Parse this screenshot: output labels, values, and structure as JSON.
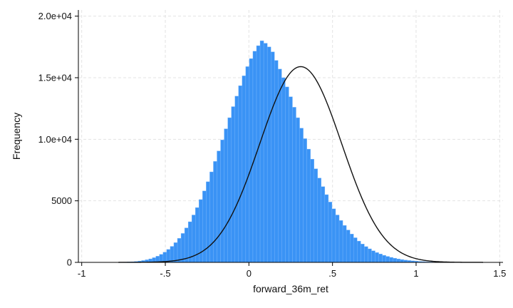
{
  "chart_data": {
    "type": "bar",
    "xlabel": "forward_36m_ret",
    "ylabel": "Frequency",
    "xlim": [
      -1.02,
      1.52
    ],
    "ylim": [
      0,
      20500
    ],
    "x_ticks": [
      -1,
      -0.5,
      0,
      0.5,
      1,
      1.5
    ],
    "x_tick_labels": [
      "-1",
      "-.5",
      "0",
      ".5",
      "1",
      "1.5"
    ],
    "y_ticks": [
      0,
      5000,
      10000,
      15000,
      20000
    ],
    "y_tick_labels": [
      "0",
      "5000",
      "1.0e+04",
      "1.5e+04",
      "2.0e+04"
    ],
    "grid": true,
    "bar_color": "#3a93f5",
    "bin_width": 0.0215,
    "bins_start": -0.75,
    "values": [
      20,
      35,
      50,
      75,
      110,
      150,
      210,
      285,
      380,
      500,
      650,
      830,
      1050,
      1300,
      1600,
      1950,
      2350,
      2800,
      3300,
      3850,
      4450,
      5100,
      5800,
      6550,
      7350,
      8200,
      9050,
      9950,
      10850,
      11750,
      12650,
      13500,
      14350,
      15150,
      15900,
      16550,
      17150,
      17600,
      18000,
      17800,
      17500,
      17100,
      16400,
      15700,
      15000,
      14250,
      13450,
      12600,
      11750,
      10900,
      10050,
      9200,
      8380,
      7600,
      6850,
      6150,
      5500,
      4900,
      4350,
      3850,
      3400,
      3000,
      2630,
      2300,
      2000,
      1730,
      1490,
      1280,
      1100,
      940,
      800,
      680,
      575,
      485,
      405,
      340,
      280,
      230,
      188,
      152,
      122,
      98,
      78,
      61,
      47,
      36,
      27,
      20,
      14,
      9,
      6,
      3
    ],
    "normal_curve": {
      "mean": 0.31,
      "sd": 0.245,
      "peak": 15900,
      "x_start": -0.78,
      "x_end": 1.4
    }
  }
}
